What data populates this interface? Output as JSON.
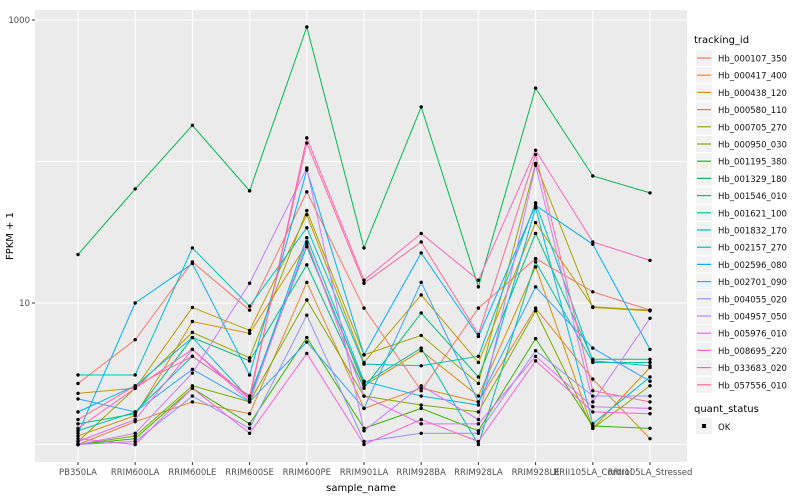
{
  "figure": {
    "background_color": "#FFFFFF",
    "panel_background_color": "#EBEBEB",
    "gridline_color": "#FFFFFF",
    "point_color": "#000000",
    "axis_text_color": "#4D4D4D",
    "title_text_color": "#000000"
  },
  "axes": {
    "x_title": "sample_name",
    "y_title": "FPKM + 1",
    "y_scale": "log10",
    "y_tick_labels": [
      "1000",
      "10"
    ],
    "y_tick_values": [
      1000,
      10
    ],
    "y_gridline_values": [
      1,
      10,
      100,
      1000
    ]
  },
  "legend": {
    "tracking_title": "tracking_id",
    "quant_title": "quant_status",
    "quant_ok_label": "OK",
    "quant_key_icon": "black-square-point",
    "key_background": "#F2F2F2"
  },
  "chart_data": {
    "type": "line",
    "title": "",
    "xlabel": "sample_name",
    "ylabel": "FPKM + 1",
    "y_axis": {
      "scale": "log10",
      "range": [
        0.75,
        1175
      ],
      "labeled_ticks": [
        10,
        1000
      ],
      "gridlines": [
        1,
        10,
        100,
        1000
      ]
    },
    "grid": true,
    "legend_position": "right",
    "categories": [
      "PB350LA",
      "RRIM600LA",
      "RRIM600LE",
      "RRIM600SE",
      "RRIM600PE",
      "RRIM901LA",
      "RRIM928BA",
      "RRIM928LA",
      "RRIM928LE",
      "RRII105LA_Control",
      "RRII105LA_Stressed"
    ],
    "series": [
      {
        "name": "Hb_000107_350",
        "color": "#F8766D",
        "values": [
          2.7,
          5.5,
          19.5,
          8.9,
          61,
          9.2,
          2.4,
          9.2,
          20.6,
          12,
          8.9
        ]
      },
      {
        "name": "Hb_000417_400",
        "color": "#EA8331",
        "values": [
          1.0,
          1.45,
          2.0,
          1.65,
          14,
          1.8,
          2.5,
          2.0,
          9.2,
          2.9,
          1.1
        ]
      },
      {
        "name": "Hb_000438_120",
        "color": "#D89000",
        "values": [
          1.15,
          1.6,
          7.4,
          6.1,
          26,
          2.6,
          4.6,
          2.2,
          18,
          1.3,
          3.5
        ]
      },
      {
        "name": "Hb_000580_110",
        "color": "#C09B00",
        "values": [
          2.3,
          2.5,
          9.3,
          6.4,
          42,
          3.8,
          11.4,
          3.8,
          37,
          9.4,
          8.9
        ]
      },
      {
        "name": "Hb_000705_270",
        "color": "#A3A500",
        "values": [
          1.05,
          2.5,
          6.2,
          4.1,
          45,
          4.3,
          5.9,
          2.7,
          97,
          9.3,
          8.8
        ]
      },
      {
        "name": "Hb_000950_030",
        "color": "#7CAE00",
        "values": [
          1.0,
          1.15,
          2.6,
          2.0,
          10.5,
          2.2,
          1.9,
          1.7,
          8.8,
          1.3,
          2.6
        ]
      },
      {
        "name": "Hb_001195_380",
        "color": "#39B600",
        "values": [
          1.0,
          1.1,
          2.5,
          1.4,
          5.7,
          1.3,
          1.8,
          1.25,
          5.6,
          1.35,
          1.3
        ]
      },
      {
        "name": "Hb_001329_180",
        "color": "#00BB4E",
        "values": [
          22,
          64,
          180,
          62,
          893,
          24.5,
          243,
          13,
          330,
          79,
          60
        ]
      },
      {
        "name": "Hb_001546_010",
        "color": "#00BF7D",
        "values": [
          1.4,
          1.65,
          5.7,
          3.9,
          18.6,
          2.5,
          8.5,
          3.0,
          31,
          4.0,
          4.0
        ]
      },
      {
        "name": "Hb_001621_100",
        "color": "#00C1A3",
        "values": [
          1.25,
          1.7,
          4.2,
          2.2,
          25,
          2.7,
          4.8,
          1.0,
          19.5,
          3.8,
          3.8
        ]
      },
      {
        "name": "Hb_001832_170",
        "color": "#00BFC4",
        "values": [
          3.1,
          3.1,
          24.5,
          9.5,
          34,
          3.7,
          3.6,
          4.2,
          51,
          3.9,
          3.6
        ]
      },
      {
        "name": "Hb_002157_270",
        "color": "#00BAE0",
        "values": [
          1.7,
          2.6,
          5.7,
          2.1,
          29,
          2.8,
          2.2,
          1.9,
          47,
          1.4,
          3.0
        ]
      },
      {
        "name": "Hb_002596_080",
        "color": "#00B0F6",
        "values": [
          1.2,
          10,
          19,
          3.1,
          87,
          4.3,
          22.6,
          5.8,
          49,
          26,
          4.7
        ]
      },
      {
        "name": "Hb_002701_090",
        "color": "#35A2FF",
        "values": [
          2.1,
          1.7,
          3.4,
          2.0,
          5.3,
          1.8,
          14,
          2.0,
          13,
          4.8,
          2.8
        ]
      },
      {
        "name": "Hb_004055_020",
        "color": "#9590FF",
        "values": [
          1.0,
          1.05,
          2.2,
          1.3,
          8.2,
          1.05,
          1.2,
          1.2,
          4.6,
          2.2,
          2.2
        ]
      },
      {
        "name": "Hb_004957_050",
        "color": "#C77CFF",
        "values": [
          1.0,
          1.2,
          3.2,
          13.8,
          90,
          1.25,
          2.6,
          1.5,
          94,
          2.0,
          7.8
        ]
      },
      {
        "name": "Hb_005976_010",
        "color": "#E76BF3",
        "values": [
          1.05,
          1.5,
          4.7,
          2.0,
          27,
          2.2,
          1.4,
          1.4,
          4.2,
          1.85,
          1.8
        ]
      },
      {
        "name": "Hb_008695_220",
        "color": "#FA62DB",
        "values": [
          1.1,
          1.0,
          2.5,
          1.2,
          4.4,
          1.0,
          1.5,
          1.05,
          3.9,
          1.7,
          1.65
        ]
      },
      {
        "name": "Hb_033683_020",
        "color": "#FF62BC",
        "values": [
          1.3,
          2.5,
          4.7,
          2.1,
          147,
          14.5,
          31,
          14.5,
          120,
          27,
          20
        ]
      },
      {
        "name": "Hb_057556_010",
        "color": "#FF6A98",
        "values": [
          1.5,
          2.6,
          4.2,
          2.2,
          135,
          13.8,
          27,
          6.0,
          112,
          2.4,
          2.0
        ]
      }
    ]
  }
}
